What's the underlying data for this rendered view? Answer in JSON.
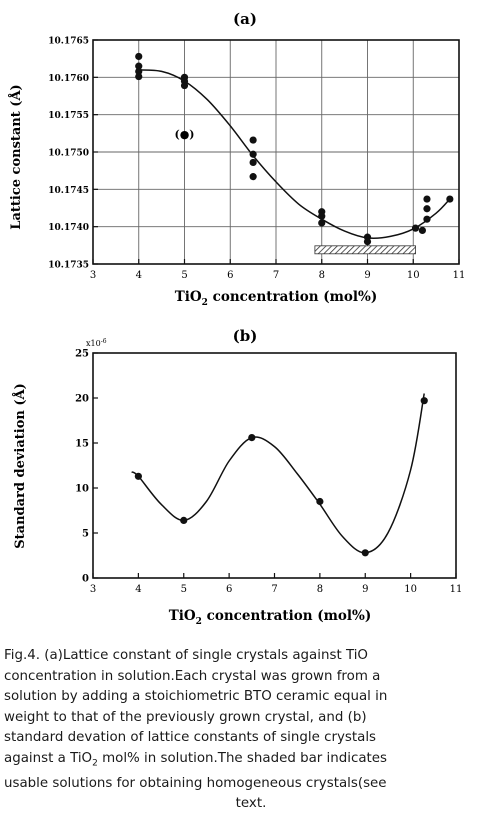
{
  "chart_data": [
    {
      "panel_label": "(a)",
      "type": "scatter",
      "ylabel": "Lattice constant  (Å)",
      "xlabel_prefix": "TiO",
      "xlabel_sub": "2",
      "xlabel_suffix": " concentration  (mol%)",
      "xlim": [
        3,
        11
      ],
      "ylim": [
        10.1735,
        10.1765
      ],
      "x_ticks": [
        "3",
        "4",
        "5",
        "6",
        "7",
        "8",
        "9",
        "10",
        "11"
      ],
      "y_ticks": [
        "10.1735",
        "10.1740",
        "10.1745",
        "10.1750",
        "10.1755",
        "10.1760",
        "10.1765"
      ],
      "grid": true,
      "points": [
        {
          "x": 4.0,
          "y": 10.17628
        },
        {
          "x": 4.0,
          "y": 10.17615
        },
        {
          "x": 4.0,
          "y": 10.17608
        },
        {
          "x": 4.0,
          "y": 10.17601
        },
        {
          "x": 5.0,
          "y": 10.176
        },
        {
          "x": 5.0,
          "y": 10.17595
        },
        {
          "x": 5.0,
          "y": 10.17589
        },
        {
          "x": 6.5,
          "y": 10.17516
        },
        {
          "x": 6.5,
          "y": 10.17497
        },
        {
          "x": 6.5,
          "y": 10.17486
        },
        {
          "x": 6.5,
          "y": 10.17467
        },
        {
          "x": 8.0,
          "y": 10.1742
        },
        {
          "x": 8.0,
          "y": 10.17414
        },
        {
          "x": 8.0,
          "y": 10.17405
        },
        {
          "x": 9.0,
          "y": 10.17386
        },
        {
          "x": 9.0,
          "y": 10.1738
        },
        {
          "x": 10.05,
          "y": 10.17398
        },
        {
          "x": 10.2,
          "y": 10.17395
        },
        {
          "x": 10.3,
          "y": 10.17437
        },
        {
          "x": 10.3,
          "y": 10.17424
        },
        {
          "x": 10.3,
          "y": 10.1741
        },
        {
          "x": 10.8,
          "y": 10.17437
        }
      ],
      "outlier": {
        "x": 5.0,
        "y": 10.17524,
        "label": "(●)"
      },
      "fit_curve": [
        {
          "x": 4.0,
          "y": 10.1761
        },
        {
          "x": 4.5,
          "y": 10.17608
        },
        {
          "x": 5.0,
          "y": 10.17595
        },
        {
          "x": 5.5,
          "y": 10.1757
        },
        {
          "x": 6.0,
          "y": 10.17535
        },
        {
          "x": 6.5,
          "y": 10.17495
        },
        {
          "x": 7.0,
          "y": 10.1746
        },
        {
          "x": 7.5,
          "y": 10.1743
        },
        {
          "x": 8.0,
          "y": 10.1741
        },
        {
          "x": 8.5,
          "y": 10.17394
        },
        {
          "x": 9.0,
          "y": 10.17385
        },
        {
          "x": 9.5,
          "y": 10.17387
        },
        {
          "x": 10.0,
          "y": 10.17397
        },
        {
          "x": 10.5,
          "y": 10.17418
        },
        {
          "x": 10.8,
          "y": 10.17437
        }
      ],
      "shaded_bar": {
        "x_start": 7.85,
        "x_end": 10.05,
        "y": 10.17369
      }
    },
    {
      "panel_label": "(b)",
      "type": "scatter",
      "ylabel": "Standard deviation  (Å)",
      "y_multiplier_base": "x10",
      "y_multiplier_exp": "-6",
      "xlabel_prefix": "TiO",
      "xlabel_sub": "2",
      "xlabel_suffix": " concentration  (mol%)",
      "xlim": [
        3,
        11
      ],
      "ylim": [
        0,
        25
      ],
      "x_ticks": [
        "3",
        "4",
        "5",
        "6",
        "7",
        "8",
        "9",
        "10",
        "11"
      ],
      "y_ticks": [
        "0",
        "5",
        "10",
        "15",
        "20",
        "25"
      ],
      "grid": false,
      "points": [
        {
          "x": 4.0,
          "y": 11.3
        },
        {
          "x": 5.0,
          "y": 6.4
        },
        {
          "x": 6.5,
          "y": 15.6
        },
        {
          "x": 8.0,
          "y": 8.5
        },
        {
          "x": 9.0,
          "y": 2.8
        },
        {
          "x": 10.3,
          "y": 19.7
        }
      ],
      "fit_curve": [
        {
          "x": 3.85,
          "y": 11.8
        },
        {
          "x": 4.0,
          "y": 11.3
        },
        {
          "x": 4.5,
          "y": 8.2
        },
        {
          "x": 5.0,
          "y": 6.4
        },
        {
          "x": 5.5,
          "y": 8.5
        },
        {
          "x": 6.0,
          "y": 13.0
        },
        {
          "x": 6.5,
          "y": 15.6
        },
        {
          "x": 7.0,
          "y": 14.6
        },
        {
          "x": 7.5,
          "y": 11.6
        },
        {
          "x": 8.0,
          "y": 8.2
        },
        {
          "x": 8.5,
          "y": 4.6
        },
        {
          "x": 9.0,
          "y": 2.8
        },
        {
          "x": 9.5,
          "y": 5.0
        },
        {
          "x": 10.0,
          "y": 12.0
        },
        {
          "x": 10.3,
          "y": 20.5
        }
      ]
    }
  ],
  "caption": {
    "line1": "Fig.4. (a)Lattice constant of single crystals against TiO",
    "line2": "concentration in solution.Each crystal was grown from a",
    "line3": "solution by adding a stoichiometric BTO ceramic equal in",
    "line4": "weight  to that of  the  previously grown crystal, and (b)",
    "line5": "standard devation of lattice constants of single crystals",
    "line6a": "against a TiO",
    "line6sub": "2",
    "line6b": " mol% in solution.The shaded bar indicates",
    "line7": "usable solutions for obtaining homogeneous crystals(see",
    "line8": "text."
  }
}
